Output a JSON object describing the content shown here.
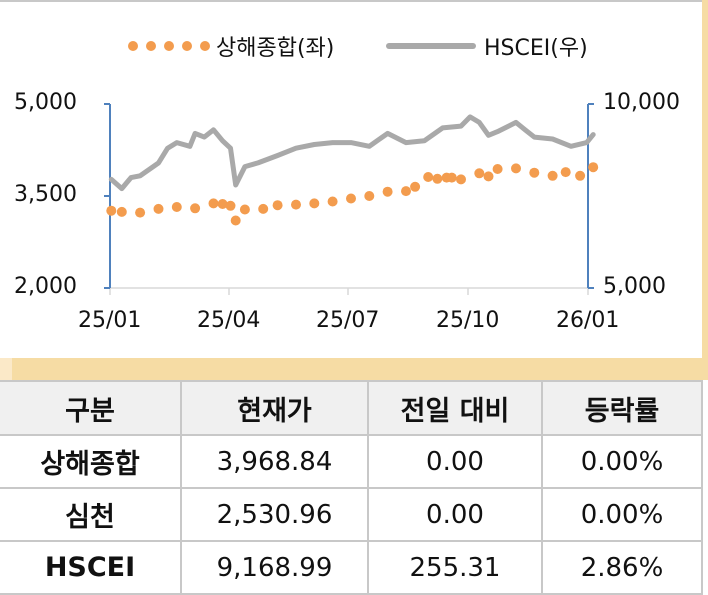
{
  "legend": {
    "series1_label": "상해종합(좌)",
    "series2_label": "HSCEI(우)"
  },
  "axes": {
    "left_ticks": [
      "5,000",
      "3,500",
      "2,000"
    ],
    "right_ticks": [
      "10,000",
      "5,000"
    ],
    "x_ticks": [
      "25/01",
      "25/04",
      "25/07",
      "25/10",
      "26/01"
    ]
  },
  "colors": {
    "shanghai": "#f39c4e",
    "hscei": "#a9a9a9",
    "axis": "#4f81bd",
    "band": "#f6dca4",
    "header_bg": "#f0f0f0"
  },
  "chart_data": {
    "type": "line",
    "title": "",
    "xlabel": "",
    "ylabel_left": "상해종합",
    "ylabel_right": "HSCEI",
    "x_ticks": [
      "25/01",
      "25/04",
      "25/07",
      "25/10",
      "26/01"
    ],
    "ylim_left": [
      2000,
      5000
    ],
    "ylim_right": [
      5000,
      10000
    ],
    "legend_position": "top",
    "grid": false,
    "series": [
      {
        "name": "상해종합(좌)",
        "axis": "left",
        "style": "dotted-markers",
        "x": [
          "25/01/02",
          "25/01/10",
          "25/01/24",
          "25/02/07",
          "25/02/21",
          "25/03/07",
          "25/03/21",
          "25/03/28",
          "25/04/03",
          "25/04/07",
          "25/04/14",
          "25/04/28",
          "25/05/09",
          "25/05/23",
          "25/06/06",
          "25/06/20",
          "25/07/04",
          "25/07/18",
          "25/08/01",
          "25/08/15",
          "25/08/22",
          "25/09/01",
          "25/09/08",
          "25/09/15",
          "25/09/19",
          "25/09/26",
          "25/10/10",
          "25/10/17",
          "25/10/24",
          "25/11/07",
          "25/11/21",
          "25/12/05",
          "25/12/15",
          "25/12/26",
          "26/01/05"
        ],
        "values": [
          3260,
          3240,
          3230,
          3290,
          3320,
          3300,
          3380,
          3370,
          3340,
          3100,
          3280,
          3290,
          3350,
          3360,
          3380,
          3410,
          3460,
          3500,
          3570,
          3580,
          3650,
          3810,
          3780,
          3800,
          3800,
          3770,
          3870,
          3820,
          3940,
          3950,
          3880,
          3830,
          3890,
          3830,
          3969
        ]
      },
      {
        "name": "HSCEI(우)",
        "axis": "right",
        "style": "line",
        "x": [
          "25/01/02",
          "25/01/10",
          "25/01/17",
          "25/01/24",
          "25/02/07",
          "25/02/14",
          "25/02/21",
          "25/03/03",
          "25/03/07",
          "25/03/14",
          "25/03/21",
          "25/03/28",
          "25/04/03",
          "25/04/07",
          "25/04/14",
          "25/04/24",
          "25/05/09",
          "25/05/23",
          "25/06/06",
          "25/06/20",
          "25/07/04",
          "25/07/18",
          "25/08/01",
          "25/08/15",
          "25/08/29",
          "25/09/12",
          "25/09/26",
          "25/10/03",
          "25/10/10",
          "25/10/17",
          "25/10/24",
          "25/11/07",
          "25/11/14",
          "25/11/21",
          "25/12/05",
          "25/12/19",
          "25/12/31",
          "26/01/05"
        ],
        "values": [
          7950,
          7700,
          8000,
          8050,
          8400,
          8800,
          8950,
          8850,
          9200,
          9100,
          9300,
          9000,
          8800,
          7800,
          8300,
          8400,
          8600,
          8800,
          8900,
          8950,
          8950,
          8850,
          9200,
          8950,
          9000,
          9350,
          9400,
          9650,
          9500,
          9150,
          9250,
          9500,
          9300,
          9100,
          9050,
          8850,
          8950,
          9169
        ]
      }
    ]
  },
  "table": {
    "headers": [
      "구분",
      "현재가",
      "전일 대비",
      "등락률"
    ],
    "rows": [
      {
        "name": "상해종합",
        "price": "3,968.84",
        "change": "0.00",
        "rate": "0.00%"
      },
      {
        "name": "심천",
        "price": "2,530.96",
        "change": "0.00",
        "rate": "0.00%"
      },
      {
        "name": "HSCEI",
        "price": "9,168.99",
        "change": "255.31",
        "rate": "2.86%"
      }
    ]
  }
}
